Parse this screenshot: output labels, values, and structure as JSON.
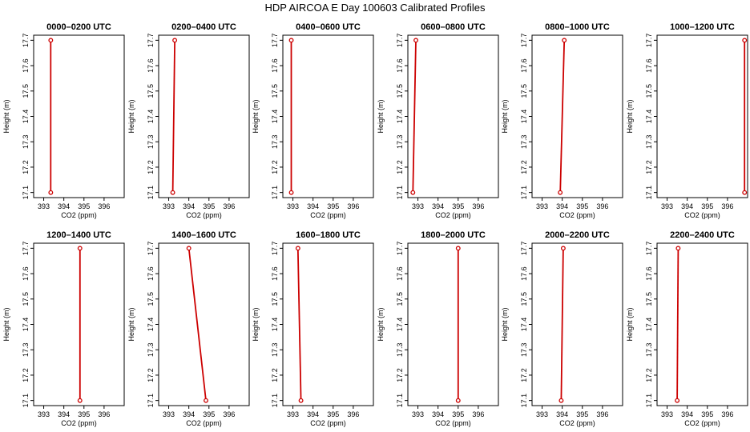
{
  "figure": {
    "title": "HDP AIRCOA E  Day 100603  Calibrated Profiles",
    "colors": {
      "line": "#cc0000",
      "axis": "#000000",
      "background": "#ffffff"
    }
  },
  "chart_data": [
    {
      "type": "line",
      "title": "0000–0200 UTC",
      "xlabel": "CO2 (ppm)",
      "ylabel": "Height (m)",
      "xlim": [
        392.5,
        397.0
      ],
      "ylim": [
        17.08,
        17.72
      ],
      "xticks": [
        "393",
        "394",
        "395",
        "396"
      ],
      "yticks": [
        "17.1",
        "17.2",
        "17.3",
        "17.4",
        "17.5",
        "17.6",
        "17.7"
      ],
      "series": [
        {
          "x": [
            393.35,
            393.35
          ],
          "y": [
            17.1,
            17.7
          ]
        }
      ]
    },
    {
      "type": "line",
      "title": "0200–0400 UTC",
      "xlabel": "CO2 (ppm)",
      "ylabel": "Height (m)",
      "xlim": [
        392.5,
        397.0
      ],
      "ylim": [
        17.08,
        17.72
      ],
      "xticks": [
        "393",
        "394",
        "395",
        "396"
      ],
      "yticks": [
        "17.1",
        "17.2",
        "17.3",
        "17.4",
        "17.5",
        "17.6",
        "17.7"
      ],
      "series": [
        {
          "x": [
            393.2,
            393.3
          ],
          "y": [
            17.1,
            17.7
          ]
        }
      ]
    },
    {
      "type": "line",
      "title": "0400–0600 UTC",
      "xlabel": "CO2 (ppm)",
      "ylabel": "Height (m)",
      "xlim": [
        392.5,
        397.0
      ],
      "ylim": [
        17.08,
        17.72
      ],
      "xticks": [
        "393",
        "394",
        "395",
        "396"
      ],
      "yticks": [
        "17.1",
        "17.2",
        "17.3",
        "17.4",
        "17.5",
        "17.6",
        "17.7"
      ],
      "series": [
        {
          "x": [
            392.92,
            392.92
          ],
          "y": [
            17.1,
            17.7
          ]
        }
      ]
    },
    {
      "type": "line",
      "title": "0600–0800 UTC",
      "xlabel": "CO2 (ppm)",
      "ylabel": "Height (m)",
      "xlim": [
        392.5,
        397.0
      ],
      "ylim": [
        17.08,
        17.72
      ],
      "xticks": [
        "393",
        "394",
        "395",
        "396"
      ],
      "yticks": [
        "17.1",
        "17.2",
        "17.3",
        "17.4",
        "17.5",
        "17.6",
        "17.7"
      ],
      "series": [
        {
          "x": [
            392.75,
            392.9
          ],
          "y": [
            17.1,
            17.7
          ]
        }
      ]
    },
    {
      "type": "line",
      "title": "0800–1000 UTC",
      "xlabel": "CO2 (ppm)",
      "ylabel": "Height (m)",
      "xlim": [
        392.5,
        397.0
      ],
      "ylim": [
        17.08,
        17.72
      ],
      "xticks": [
        "393",
        "394",
        "395",
        "396"
      ],
      "yticks": [
        "17.1",
        "17.2",
        "17.3",
        "17.4",
        "17.5",
        "17.6",
        "17.7"
      ],
      "series": [
        {
          "x": [
            393.9,
            394.1
          ],
          "y": [
            17.1,
            17.7
          ]
        }
      ]
    },
    {
      "type": "line",
      "title": "1000–1200 UTC",
      "xlabel": "CO2 (ppm)",
      "ylabel": "Height (m)",
      "xlim": [
        392.5,
        397.0
      ],
      "ylim": [
        17.08,
        17.72
      ],
      "xticks": [
        "393",
        "394",
        "395",
        "396"
      ],
      "yticks": [
        "17.1",
        "17.2",
        "17.3",
        "17.4",
        "17.5",
        "17.6",
        "17.7"
      ],
      "series": [
        {
          "x": [
            396.85,
            396.85
          ],
          "y": [
            17.1,
            17.7
          ]
        }
      ]
    },
    {
      "type": "line",
      "title": "1200–1400 UTC",
      "xlabel": "CO2 (ppm)",
      "ylabel": "Height (m)",
      "xlim": [
        392.5,
        397.0
      ],
      "ylim": [
        17.08,
        17.72
      ],
      "xticks": [
        "393",
        "394",
        "395",
        "396"
      ],
      "yticks": [
        "17.1",
        "17.2",
        "17.3",
        "17.4",
        "17.5",
        "17.6",
        "17.7"
      ],
      "series": [
        {
          "x": [
            394.8,
            394.8
          ],
          "y": [
            17.1,
            17.7
          ]
        }
      ]
    },
    {
      "type": "line",
      "title": "1400–1600 UTC",
      "xlabel": "CO2 (ppm)",
      "ylabel": "Height (m)",
      "xlim": [
        392.5,
        397.0
      ],
      "ylim": [
        17.08,
        17.72
      ],
      "xticks": [
        "393",
        "394",
        "395",
        "396"
      ],
      "yticks": [
        "17.1",
        "17.2",
        "17.3",
        "17.4",
        "17.5",
        "17.6",
        "17.7"
      ],
      "series": [
        {
          "x": [
            394.85,
            394.0
          ],
          "y": [
            17.1,
            17.7
          ]
        }
      ]
    },
    {
      "type": "line",
      "title": "1600–1800 UTC",
      "xlabel": "CO2 (ppm)",
      "ylabel": "Height (m)",
      "xlim": [
        392.5,
        397.0
      ],
      "ylim": [
        17.08,
        17.72
      ],
      "xticks": [
        "393",
        "394",
        "395",
        "396"
      ],
      "yticks": [
        "17.1",
        "17.2",
        "17.3",
        "17.4",
        "17.5",
        "17.6",
        "17.7"
      ],
      "series": [
        {
          "x": [
            393.4,
            393.25
          ],
          "y": [
            17.1,
            17.7
          ]
        }
      ]
    },
    {
      "type": "line",
      "title": "1800–2000 UTC",
      "xlabel": "CO2 (ppm)",
      "ylabel": "Height (m)",
      "xlim": [
        392.5,
        397.0
      ],
      "ylim": [
        17.08,
        17.72
      ],
      "xticks": [
        "393",
        "394",
        "395",
        "396"
      ],
      "yticks": [
        "17.1",
        "17.2",
        "17.3",
        "17.4",
        "17.5",
        "17.6",
        "17.7"
      ],
      "series": [
        {
          "x": [
            395.0,
            395.0
          ],
          "y": [
            17.1,
            17.7
          ]
        }
      ]
    },
    {
      "type": "line",
      "title": "2000–2200 UTC",
      "xlabel": "CO2 (ppm)",
      "ylabel": "Height (m)",
      "xlim": [
        392.5,
        397.0
      ],
      "ylim": [
        17.08,
        17.72
      ],
      "xticks": [
        "393",
        "394",
        "395",
        "396"
      ],
      "yticks": [
        "17.1",
        "17.2",
        "17.3",
        "17.4",
        "17.5",
        "17.6",
        "17.7"
      ],
      "series": [
        {
          "x": [
            393.95,
            394.05
          ],
          "y": [
            17.1,
            17.7
          ]
        }
      ]
    },
    {
      "type": "line",
      "title": "2200–2400 UTC",
      "xlabel": "CO2 (ppm)",
      "ylabel": "Height (m)",
      "xlim": [
        392.5,
        397.0
      ],
      "ylim": [
        17.08,
        17.72
      ],
      "xticks": [
        "393",
        "394",
        "395",
        "396"
      ],
      "yticks": [
        "17.1",
        "17.2",
        "17.3",
        "17.4",
        "17.5",
        "17.6",
        "17.7"
      ],
      "series": [
        {
          "x": [
            393.5,
            393.55
          ],
          "y": [
            17.1,
            17.7
          ]
        }
      ]
    }
  ]
}
